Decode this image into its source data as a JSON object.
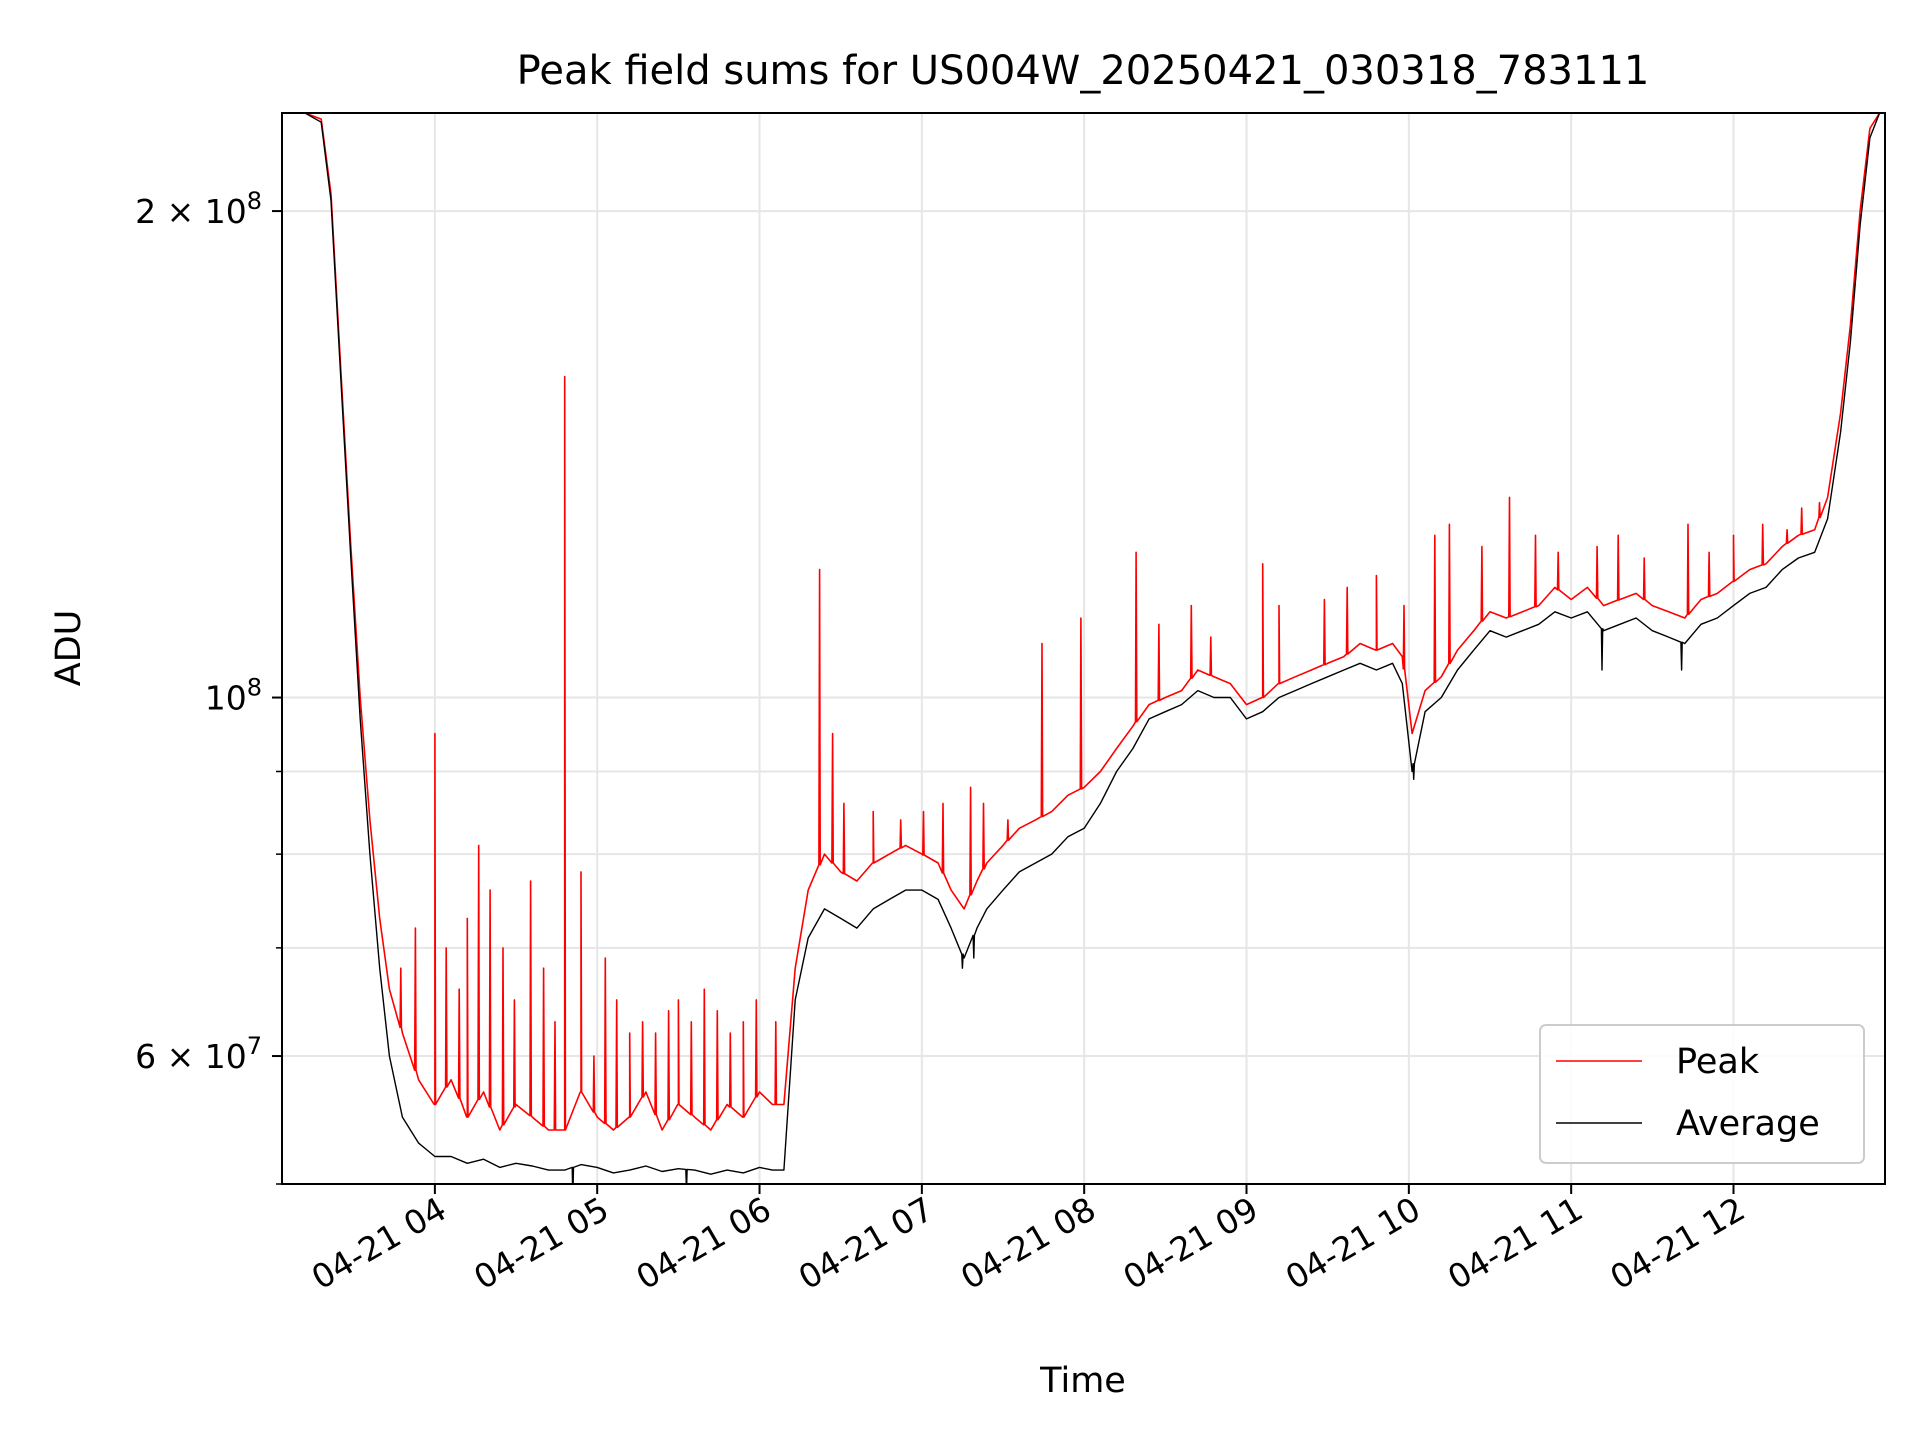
{
  "chart_data": {
    "type": "line",
    "title": "Peak field sums for US004W_20250421_030318_783111",
    "xlabel": "Time",
    "ylabel": "ADU",
    "yscale": "log",
    "grid": true,
    "legend_position": "lower-right",
    "x_ticks": [
      "04-21 04",
      "04-21 05",
      "04-21 06",
      "04-21 07",
      "04-21 08",
      "04-21 09",
      "04-21 10",
      "04-21 11",
      "04-21 12"
    ],
    "x_tick_hours": [
      4,
      5,
      6,
      7,
      8,
      9,
      10,
      11,
      12
    ],
    "xlim_hours": [
      3.0583,
      12.9333
    ],
    "ylim": [
      50000000,
      230000000
    ],
    "y_major_ticks": [
      {
        "value": 200000000,
        "mant": "2",
        "exp": "8"
      },
      {
        "value": 100000000,
        "mant": "",
        "exp": "8"
      },
      {
        "value": 60000000,
        "mant": "6",
        "exp": "7"
      }
    ],
    "y_minor_ticks": [
      50000000,
      70000000,
      80000000,
      90000000
    ],
    "colors": {
      "peak": "#ff0000",
      "average": "#000000"
    },
    "series": [
      {
        "name": "Peak",
        "color": "#ff0000",
        "time_hours": [
          3.06,
          3.2,
          3.3,
          3.36,
          3.42,
          3.48,
          3.54,
          3.6,
          3.66,
          3.72,
          3.8,
          3.9,
          4.0,
          4.1,
          4.2,
          4.3,
          4.4,
          4.5,
          4.6,
          4.7,
          4.8,
          4.9,
          5.0,
          5.1,
          5.2,
          5.3,
          5.4,
          5.5,
          5.6,
          5.7,
          5.8,
          5.9,
          6.0,
          6.08,
          6.15,
          6.22,
          6.3,
          6.4,
          6.5,
          6.6,
          6.7,
          6.8,
          6.9,
          7.0,
          7.1,
          7.18,
          7.26,
          7.34,
          7.4,
          7.5,
          7.6,
          7.7,
          7.8,
          7.9,
          8.0,
          8.1,
          8.2,
          8.3,
          8.4,
          8.5,
          8.6,
          8.7,
          8.8,
          8.9,
          9.0,
          9.1,
          9.2,
          9.3,
          9.4,
          9.5,
          9.6,
          9.7,
          9.8,
          9.9,
          9.96,
          10.02,
          10.1,
          10.2,
          10.3,
          10.4,
          10.5,
          10.6,
          10.7,
          10.8,
          10.9,
          11.0,
          11.1,
          11.2,
          11.3,
          11.4,
          11.5,
          11.6,
          11.7,
          11.8,
          11.9,
          12.0,
          12.1,
          12.2,
          12.3,
          12.4,
          12.5,
          12.58,
          12.66,
          12.72,
          12.78,
          12.84,
          12.9
        ],
        "values": [
          230000000,
          230000000,
          228000000,
          205000000,
          160000000,
          125000000,
          100000000,
          84000000,
          73000000,
          66000000,
          62000000,
          58000000,
          56000000,
          58000000,
          55000000,
          57000000,
          54000000,
          56000000,
          55000000,
          54000000,
          54000000,
          57000000,
          55000000,
          54000000,
          55000000,
          57000000,
          54000000,
          56000000,
          55000000,
          54000000,
          56000000,
          55000000,
          57000000,
          56000000,
          56000000,
          68000000,
          76000000,
          80000000,
          78000000,
          77000000,
          79000000,
          80000000,
          81000000,
          80000000,
          79000000,
          76000000,
          74000000,
          77000000,
          79000000,
          81000000,
          83000000,
          84000000,
          85000000,
          87000000,
          88000000,
          90000000,
          93000000,
          96000000,
          99000000,
          100000000,
          101000000,
          104000000,
          103000000,
          102000000,
          99000000,
          100000000,
          102000000,
          103000000,
          104000000,
          105000000,
          106000000,
          108000000,
          107000000,
          108000000,
          106000000,
          95000000,
          101000000,
          103000000,
          107000000,
          110000000,
          113000000,
          112000000,
          113000000,
          114000000,
          117000000,
          115000000,
          117000000,
          114000000,
          115000000,
          116000000,
          114000000,
          113000000,
          112000000,
          115000000,
          116000000,
          118000000,
          120000000,
          121000000,
          124000000,
          126000000,
          127000000,
          133000000,
          150000000,
          170000000,
          200000000,
          225000000,
          230000000
        ]
      },
      {
        "name": "Average",
        "color": "#000000",
        "time_hours": [
          3.06,
          3.2,
          3.3,
          3.36,
          3.42,
          3.48,
          3.54,
          3.6,
          3.66,
          3.72,
          3.8,
          3.9,
          4.0,
          4.1,
          4.2,
          4.3,
          4.4,
          4.5,
          4.6,
          4.7,
          4.8,
          4.9,
          5.0,
          5.1,
          5.2,
          5.3,
          5.4,
          5.5,
          5.6,
          5.7,
          5.8,
          5.9,
          6.0,
          6.08,
          6.15,
          6.22,
          6.3,
          6.4,
          6.5,
          6.6,
          6.7,
          6.8,
          6.9,
          7.0,
          7.1,
          7.18,
          7.26,
          7.34,
          7.4,
          7.5,
          7.6,
          7.7,
          7.8,
          7.9,
          8.0,
          8.1,
          8.2,
          8.3,
          8.4,
          8.5,
          8.6,
          8.7,
          8.8,
          8.9,
          9.0,
          9.1,
          9.2,
          9.3,
          9.4,
          9.5,
          9.6,
          9.7,
          9.8,
          9.9,
          9.96,
          10.02,
          10.1,
          10.2,
          10.3,
          10.4,
          10.5,
          10.6,
          10.7,
          10.8,
          10.9,
          11.0,
          11.1,
          11.2,
          11.3,
          11.4,
          11.5,
          11.6,
          11.7,
          11.8,
          11.9,
          12.0,
          12.1,
          12.2,
          12.3,
          12.4,
          12.5,
          12.58,
          12.66,
          12.72,
          12.78,
          12.84,
          12.9
        ],
        "values": [
          230000000,
          230000000,
          227000000,
          203000000,
          158000000,
          123000000,
          97000000,
          80000000,
          68000000,
          60000000,
          55000000,
          53000000,
          52000000,
          52000000,
          51500000,
          51800000,
          51200000,
          51500000,
          51300000,
          51000000,
          51000000,
          51400000,
          51200000,
          50800000,
          51000000,
          51300000,
          50900000,
          51100000,
          51000000,
          50700000,
          51000000,
          50800000,
          51200000,
          51000000,
          51000000,
          65000000,
          71000000,
          74000000,
          73000000,
          72000000,
          74000000,
          75000000,
          76000000,
          76000000,
          75000000,
          72000000,
          69000000,
          72000000,
          74000000,
          76000000,
          78000000,
          79000000,
          80000000,
          82000000,
          83000000,
          86000000,
          90000000,
          93000000,
          97000000,
          98000000,
          99000000,
          101000000,
          100000000,
          100000000,
          97000000,
          98000000,
          100000000,
          101000000,
          102000000,
          103000000,
          104000000,
          105000000,
          104000000,
          105000000,
          102000000,
          90000000,
          98000000,
          100000000,
          104000000,
          107000000,
          110000000,
          109000000,
          110000000,
          111000000,
          113000000,
          112000000,
          113000000,
          110000000,
          111000000,
          112000000,
          110000000,
          109000000,
          108000000,
          111000000,
          112000000,
          114000000,
          116000000,
          117000000,
          120000000,
          122000000,
          123000000,
          129000000,
          146000000,
          166000000,
          196000000,
          222000000,
          230000000
        ]
      }
    ],
    "peak_spikes": [
      {
        "t": 3.79,
        "v": 68000000
      },
      {
        "t": 3.88,
        "v": 72000000
      },
      {
        "t": 4.0,
        "v": 95000000
      },
      {
        "t": 4.07,
        "v": 70000000
      },
      {
        "t": 4.15,
        "v": 66000000
      },
      {
        "t": 4.2,
        "v": 73000000
      },
      {
        "t": 4.27,
        "v": 81000000
      },
      {
        "t": 4.34,
        "v": 76000000
      },
      {
        "t": 4.42,
        "v": 70000000
      },
      {
        "t": 4.49,
        "v": 65000000
      },
      {
        "t": 4.59,
        "v": 77000000
      },
      {
        "t": 4.67,
        "v": 68000000
      },
      {
        "t": 4.74,
        "v": 63000000
      },
      {
        "t": 4.8,
        "v": 158000000
      },
      {
        "t": 4.9,
        "v": 78000000
      },
      {
        "t": 4.98,
        "v": 60000000
      },
      {
        "t": 5.05,
        "v": 69000000
      },
      {
        "t": 5.12,
        "v": 65000000
      },
      {
        "t": 5.2,
        "v": 62000000
      },
      {
        "t": 5.28,
        "v": 63000000
      },
      {
        "t": 5.36,
        "v": 62000000
      },
      {
        "t": 5.44,
        "v": 64000000
      },
      {
        "t": 5.5,
        "v": 65000000
      },
      {
        "t": 5.58,
        "v": 63000000
      },
      {
        "t": 5.66,
        "v": 66000000
      },
      {
        "t": 5.74,
        "v": 64000000
      },
      {
        "t": 5.82,
        "v": 62000000
      },
      {
        "t": 5.9,
        "v": 63000000
      },
      {
        "t": 5.98,
        "v": 65000000
      },
      {
        "t": 6.1,
        "v": 63000000
      },
      {
        "t": 6.37,
        "v": 120000000
      },
      {
        "t": 6.45,
        "v": 95000000
      },
      {
        "t": 6.52,
        "v": 86000000
      },
      {
        "t": 6.7,
        "v": 85000000
      },
      {
        "t": 6.87,
        "v": 84000000
      },
      {
        "t": 7.01,
        "v": 85000000
      },
      {
        "t": 7.13,
        "v": 86000000
      },
      {
        "t": 7.3,
        "v": 88000000
      },
      {
        "t": 7.38,
        "v": 86000000
      },
      {
        "t": 7.53,
        "v": 84000000
      },
      {
        "t": 7.74,
        "v": 108000000
      },
      {
        "t": 7.98,
        "v": 112000000
      },
      {
        "t": 8.32,
        "v": 123000000
      },
      {
        "t": 8.46,
        "v": 111000000
      },
      {
        "t": 8.66,
        "v": 114000000
      },
      {
        "t": 8.78,
        "v": 109000000
      },
      {
        "t": 9.1,
        "v": 121000000
      },
      {
        "t": 9.2,
        "v": 114000000
      },
      {
        "t": 9.48,
        "v": 115000000
      },
      {
        "t": 9.62,
        "v": 117000000
      },
      {
        "t": 9.8,
        "v": 119000000
      },
      {
        "t": 9.97,
        "v": 114000000
      },
      {
        "t": 10.16,
        "v": 126000000
      },
      {
        "t": 10.25,
        "v": 128000000
      },
      {
        "t": 10.45,
        "v": 124000000
      },
      {
        "t": 10.62,
        "v": 133000000
      },
      {
        "t": 10.78,
        "v": 126000000
      },
      {
        "t": 10.92,
        "v": 123000000
      },
      {
        "t": 11.16,
        "v": 124000000
      },
      {
        "t": 11.29,
        "v": 126000000
      },
      {
        "t": 11.45,
        "v": 122000000
      },
      {
        "t": 11.72,
        "v": 128000000
      },
      {
        "t": 11.85,
        "v": 123000000
      },
      {
        "t": 12.0,
        "v": 126000000
      },
      {
        "t": 12.18,
        "v": 128000000
      },
      {
        "t": 12.33,
        "v": 127000000
      },
      {
        "t": 12.42,
        "v": 131000000
      },
      {
        "t": 12.53,
        "v": 132000000
      }
    ],
    "average_dips": [
      {
        "t": 4.85,
        "v": 49000000
      },
      {
        "t": 5.55,
        "v": 49500000
      },
      {
        "t": 7.25,
        "v": 68000000
      },
      {
        "t": 7.32,
        "v": 69000000
      },
      {
        "t": 10.03,
        "v": 89000000
      },
      {
        "t": 11.19,
        "v": 104000000
      },
      {
        "t": 11.68,
        "v": 104000000
      }
    ]
  }
}
